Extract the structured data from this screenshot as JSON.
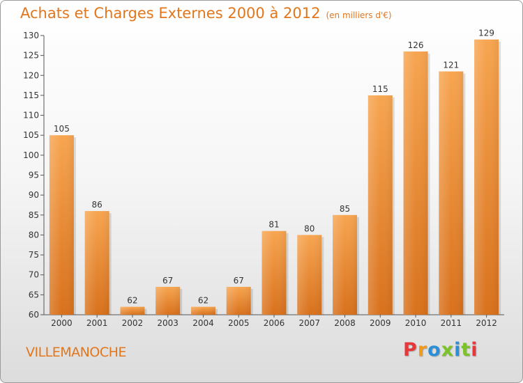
{
  "page": {
    "title": "Achats et Charges Externes 2000 à 2012",
    "subtitle": "(en milliers d'€)",
    "commune": "VILLEMANOCHE",
    "logo_text": "Proxiti",
    "logo_colors": [
      "#e8373b",
      "#f29a1a",
      "#2a8fd6",
      "#7cc22a",
      "#2a8fd6",
      "#7cc22a",
      "#e8373b"
    ]
  },
  "chart_data": {
    "type": "bar",
    "title": "Achats et Charges Externes 2000 à 2012",
    "subtitle": "(en milliers d'€)",
    "categories": [
      "2000",
      "2001",
      "2002",
      "2003",
      "2004",
      "2005",
      "2006",
      "2007",
      "2008",
      "2009",
      "2010",
      "2011",
      "2012"
    ],
    "values": [
      105,
      86,
      62,
      67,
      62,
      67,
      81,
      80,
      85,
      115,
      126,
      121,
      129
    ],
    "ylim": [
      60,
      130
    ],
    "yticks": [
      60,
      65,
      70,
      75,
      80,
      85,
      90,
      95,
      100,
      105,
      110,
      115,
      120,
      125,
      130
    ],
    "grid": false,
    "bar_color_top": "#f7a550",
    "bar_color_bottom": "#d8711c",
    "axis_color": "#555555"
  }
}
